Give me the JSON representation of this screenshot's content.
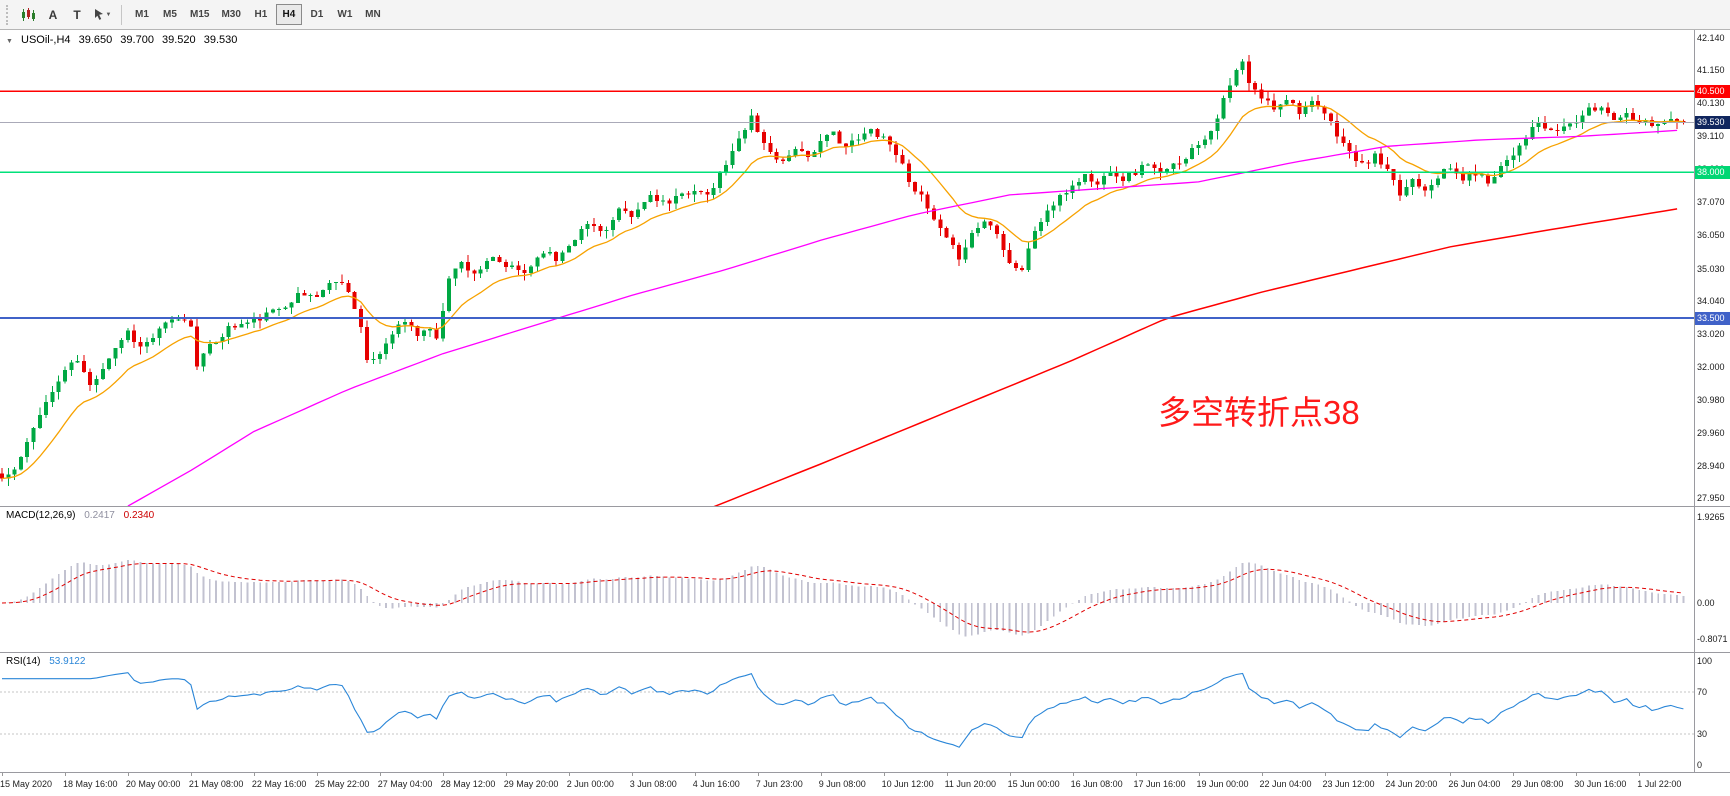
{
  "toolbar": {
    "buttons": [
      "A",
      "T"
    ],
    "timeframes": [
      "M1",
      "M5",
      "M15",
      "M30",
      "H1",
      "H4",
      "D1",
      "W1",
      "MN"
    ],
    "active_timeframe": "H4"
  },
  "price_panel": {
    "title_symbol": "USOil-,H4",
    "title_open": "39.650",
    "title_high": "39.700",
    "title_low": "39.520",
    "title_close": "39.530",
    "annotation": "多空转折点38"
  },
  "macd_panel": {
    "label": "MACD(12,26,9)",
    "value_main": "0.2417",
    "value_signal": "0.2340"
  },
  "rsi_panel": {
    "label": "RSI(14)",
    "value": "53.9122"
  },
  "colors": {
    "candle_up": "#00a843",
    "candle_down": "#e60000",
    "ma_fast": "#f7a200",
    "ma_mid": "#ff00ff",
    "ma_slow": "#ff0000",
    "macd_hist": "#c2c2d0",
    "macd_signal": "#e00000",
    "rsi_line": "#2a86d8",
    "rsi_level": "#c6c6c6",
    "annotation": "#ff1a1a"
  },
  "chart_data": [
    {
      "panel": "price",
      "type": "candlestick",
      "symbol": "USOil-",
      "timeframe": "H4",
      "quote": {
        "open": 39.65,
        "high": 39.7,
        "low": 39.52,
        "close": 39.53
      },
      "candle_count": 268,
      "close_anchors": [
        [
          0,
          28.55
        ],
        [
          2,
          28.8
        ],
        [
          4,
          29.6
        ],
        [
          6,
          30.6
        ],
        [
          8,
          31.2
        ],
        [
          10,
          31.9
        ],
        [
          12,
          32.2
        ],
        [
          14,
          31.4
        ],
        [
          16,
          32.0
        ],
        [
          18,
          32.6
        ],
        [
          20,
          33.1
        ],
        [
          22,
          32.6
        ],
        [
          24,
          32.9
        ],
        [
          26,
          33.3
        ],
        [
          28,
          33.5
        ],
        [
          30,
          33.3
        ],
        [
          31,
          32.1
        ],
        [
          33,
          32.6
        ],
        [
          36,
          33.2
        ],
        [
          40,
          33.4
        ],
        [
          44,
          33.8
        ],
        [
          47,
          34.2
        ],
        [
          50,
          34.2
        ],
        [
          53,
          34.7
        ],
        [
          55,
          34.4
        ],
        [
          57,
          33.2
        ],
        [
          58,
          32.1
        ],
        [
          60,
          32.4
        ],
        [
          62,
          33.1
        ],
        [
          64,
          33.4
        ],
        [
          66,
          33.0
        ],
        [
          68,
          33.2
        ],
        [
          69,
          32.8
        ],
        [
          71,
          34.8
        ],
        [
          73,
          35.2
        ],
        [
          75,
          34.9
        ],
        [
          78,
          35.3
        ],
        [
          80,
          35.1
        ],
        [
          83,
          34.9
        ],
        [
          86,
          35.6
        ],
        [
          88,
          35.3
        ],
        [
          90,
          35.8
        ],
        [
          93,
          36.4
        ],
        [
          96,
          36.2
        ],
        [
          98,
          36.8
        ],
        [
          100,
          36.6
        ],
        [
          103,
          37.3
        ],
        [
          106,
          37.0
        ],
        [
          108,
          37.3
        ],
        [
          110,
          37.5
        ],
        [
          112,
          37.2
        ],
        [
          114,
          37.9
        ],
        [
          116,
          38.6
        ],
        [
          118,
          39.4
        ],
        [
          119,
          39.8
        ],
        [
          120,
          39.2
        ],
        [
          122,
          38.6
        ],
        [
          124,
          38.3
        ],
        [
          126,
          38.8
        ],
        [
          128,
          38.5
        ],
        [
          130,
          38.9
        ],
        [
          132,
          39.2
        ],
        [
          134,
          38.8
        ],
        [
          136,
          39.0
        ],
        [
          138,
          39.3
        ],
        [
          140,
          39.1
        ],
        [
          142,
          38.6
        ],
        [
          144,
          37.8
        ],
        [
          146,
          37.2
        ],
        [
          148,
          36.5
        ],
        [
          150,
          35.9
        ],
        [
          152,
          35.4
        ],
        [
          154,
          36.1
        ],
        [
          156,
          36.5
        ],
        [
          158,
          36.2
        ],
        [
          160,
          35.2
        ],
        [
          162,
          35.0
        ],
        [
          164,
          36.2
        ],
        [
          166,
          36.8
        ],
        [
          168,
          37.2
        ],
        [
          170,
          37.6
        ],
        [
          172,
          37.9
        ],
        [
          174,
          37.6
        ],
        [
          176,
          38.1
        ],
        [
          178,
          37.8
        ],
        [
          180,
          38.0
        ],
        [
          182,
          38.3
        ],
        [
          184,
          37.9
        ],
        [
          186,
          38.2
        ],
        [
          188,
          38.5
        ],
        [
          190,
          38.9
        ],
        [
          192,
          39.3
        ],
        [
          194,
          40.2
        ],
        [
          196,
          41.1
        ],
        [
          197,
          41.4
        ],
        [
          198,
          40.7
        ],
        [
          200,
          40.3
        ],
        [
          202,
          40.0
        ],
        [
          204,
          40.3
        ],
        [
          206,
          39.9
        ],
        [
          208,
          40.1
        ],
        [
          210,
          39.8
        ],
        [
          212,
          39.2
        ],
        [
          214,
          38.6
        ],
        [
          216,
          38.2
        ],
        [
          218,
          38.5
        ],
        [
          220,
          38.0
        ],
        [
          222,
          37.3
        ],
        [
          224,
          37.8
        ],
        [
          226,
          37.5
        ],
        [
          228,
          37.9
        ],
        [
          230,
          38.1
        ],
        [
          232,
          37.8
        ],
        [
          234,
          38.0
        ],
        [
          236,
          37.7
        ],
        [
          238,
          38.2
        ],
        [
          240,
          38.6
        ],
        [
          242,
          39.1
        ],
        [
          244,
          39.5
        ],
        [
          246,
          39.2
        ],
        [
          248,
          39.4
        ],
        [
          250,
          39.6
        ],
        [
          252,
          39.9
        ],
        [
          254,
          40.0
        ],
        [
          256,
          39.7
        ],
        [
          258,
          39.8
        ],
        [
          260,
          39.6
        ],
        [
          262,
          39.5
        ],
        [
          264,
          39.6
        ],
        [
          267,
          39.53
        ]
      ],
      "ma_lines": [
        {
          "name": "ma-fast-orange",
          "mode": "ema",
          "period": 13,
          "color": "#f7a200",
          "width": 1.3
        },
        {
          "name": "ma-mid-magenta",
          "mode": "anchors",
          "color": "#ff00ff",
          "width": 1.3,
          "anchors": [
            [
              20,
              27.7
            ],
            [
              30,
              28.8
            ],
            [
              40,
              30.0
            ],
            [
              55,
              31.3
            ],
            [
              70,
              32.4
            ],
            [
              85,
              33.3
            ],
            [
              100,
              34.2
            ],
            [
              115,
              35.0
            ],
            [
              130,
              35.9
            ],
            [
              145,
              36.7
            ],
            [
              160,
              37.3
            ],
            [
              175,
              37.5
            ],
            [
              190,
              37.7
            ],
            [
              205,
              38.3
            ],
            [
              220,
              38.8
            ],
            [
              235,
              39.0
            ],
            [
              250,
              39.1
            ],
            [
              267,
              39.3
            ]
          ]
        },
        {
          "name": "ma-slow-red",
          "mode": "anchors",
          "color": "#ff0000",
          "width": 1.5,
          "anchors": [
            [
              112,
              27.6
            ],
            [
              130,
              29.0
            ],
            [
              150,
              30.6
            ],
            [
              170,
              32.2
            ],
            [
              185,
              33.5
            ],
            [
              200,
              34.3
            ],
            [
              215,
              35.0
            ],
            [
              230,
              35.7
            ],
            [
              245,
              36.2
            ],
            [
              267,
              36.9
            ]
          ]
        }
      ],
      "h_levels": [
        {
          "price": 40.5,
          "label": "40.500",
          "line_color": "#ff0000",
          "badge_color": "#ff0000",
          "width": 1.4
        },
        {
          "price": 39.53,
          "label": "39.530",
          "line_color": "#aaaab8",
          "badge_color": "#10265e",
          "width": 1
        },
        {
          "price": 38.0,
          "label": "38.000",
          "line_color": "#00e17a",
          "badge_color": "#00d673",
          "width": 1.8
        },
        {
          "price": 33.5,
          "label": "33.500",
          "line_color": "#4062c8",
          "badge_color": "#4062c8",
          "width": 1.8
        }
      ],
      "y_ticks": [
        42.14,
        41.15,
        40.13,
        39.11,
        38.09,
        37.07,
        36.05,
        35.03,
        34.04,
        33.02,
        32.0,
        30.98,
        29.96,
        28.94,
        27.95
      ],
      "x_labels": [
        [
          0,
          "15 May 2020"
        ],
        [
          10,
          "18 May 16:00"
        ],
        [
          20,
          "20 May 00:00"
        ],
        [
          30,
          "21 May 08:00"
        ],
        [
          40,
          "22 May 16:00"
        ],
        [
          50,
          "25 May 22:00"
        ],
        [
          60,
          "27 May 04:00"
        ],
        [
          70,
          "28 May 12:00"
        ],
        [
          80,
          "29 May 20:00"
        ],
        [
          90,
          "2 Jun 00:00"
        ],
        [
          100,
          "3 Jun 08:00"
        ],
        [
          110,
          "4 Jun 16:00"
        ],
        [
          120,
          "7 Jun 23:00"
        ],
        [
          130,
          "9 Jun 08:00"
        ],
        [
          140,
          "10 Jun 12:00"
        ],
        [
          150,
          "11 Jun 20:00"
        ],
        [
          160,
          "15 Jun 00:00"
        ],
        [
          170,
          "16 Jun 08:00"
        ],
        [
          180,
          "17 Jun 16:00"
        ],
        [
          190,
          "19 Jun 00:00"
        ],
        [
          200,
          "22 Jun 04:00"
        ],
        [
          210,
          "23 Jun 12:00"
        ],
        [
          220,
          "24 Jun 20:00"
        ],
        [
          230,
          "26 Jun 04:00"
        ],
        [
          240,
          "29 Jun 08:00"
        ],
        [
          250,
          "30 Jun 16:00"
        ],
        [
          260,
          "1 Jul 22:00"
        ]
      ],
      "annotation": {
        "text": "多空转折点38",
        "color": "#ff1a1a"
      }
    },
    {
      "panel": "macd",
      "type": "histogram+line",
      "label": "MACD(12,26,9)",
      "fast": 12,
      "slow": 26,
      "signal": 9,
      "value_main": 0.2417,
      "value_signal": 0.234,
      "y_ticks": [
        1.9265,
        0,
        -0.8071
      ],
      "y_tick_labels": [
        "1.9265",
        "0.00",
        "-0.8071"
      ],
      "derived_from": "price closes"
    },
    {
      "panel": "rsi",
      "type": "line",
      "label": "RSI(14)",
      "period": 14,
      "last_value": 53.9122,
      "y_ticks": [
        100,
        70,
        30,
        0
      ],
      "y_tick_labels": [
        "100",
        "70",
        "30",
        "0"
      ],
      "levels": [
        70,
        30
      ],
      "derived_from": "price closes"
    }
  ]
}
